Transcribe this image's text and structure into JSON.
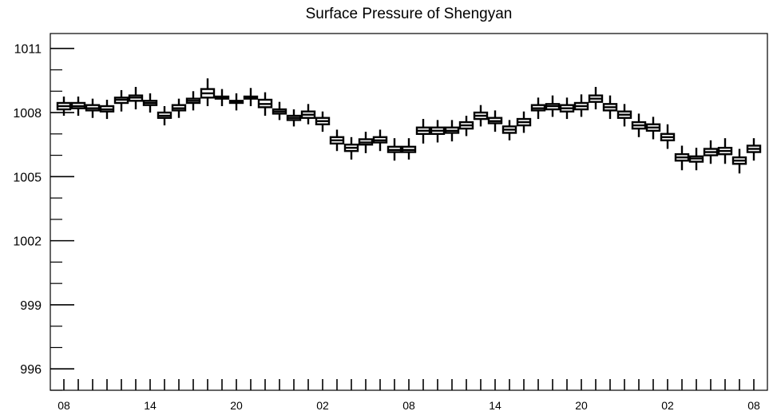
{
  "chart_data": {
    "type": "boxplot",
    "title": "Surface Pressure of Shengyan",
    "xlabel": "",
    "ylabel": "",
    "ylim": [
      995,
      1011.7
    ],
    "yticks": [
      996,
      999,
      1002,
      1005,
      1008,
      1011
    ],
    "ytick_labels": [
      "996",
      "999",
      "1002",
      "1005",
      "1008",
      "1011"
    ],
    "xtick_labels": [
      "08",
      "14",
      "20",
      "02",
      "08",
      "14",
      "20",
      "02",
      "08"
    ],
    "xtick_positions": [
      0,
      6,
      12,
      18,
      24,
      30,
      36,
      42,
      48
    ],
    "grid": false,
    "boxes": [
      {
        "x": 0,
        "q1": 1008.15,
        "median": 1008.3,
        "q3": 1008.45,
        "whislo": 1007.85,
        "whishi": 1008.75
      },
      {
        "x": 1,
        "q1": 1008.2,
        "median": 1008.3,
        "q3": 1008.45,
        "whislo": 1007.85,
        "whishi": 1008.75
      },
      {
        "x": 2,
        "q1": 1008.1,
        "median": 1008.2,
        "q3": 1008.35,
        "whislo": 1007.75,
        "whishi": 1008.65
      },
      {
        "x": 3,
        "q1": 1008.05,
        "median": 1008.15,
        "q3": 1008.3,
        "whislo": 1007.7,
        "whishi": 1008.6
      },
      {
        "x": 4,
        "q1": 1008.45,
        "median": 1008.6,
        "q3": 1008.7,
        "whislo": 1008.05,
        "whishi": 1009.05
      },
      {
        "x": 5,
        "q1": 1008.55,
        "median": 1008.7,
        "q3": 1008.8,
        "whislo": 1008.15,
        "whishi": 1009.2
      },
      {
        "x": 6,
        "q1": 1008.35,
        "median": 1008.45,
        "q3": 1008.55,
        "whislo": 1008.0,
        "whishi": 1008.9
      },
      {
        "x": 7,
        "q1": 1007.75,
        "median": 1007.85,
        "q3": 1008.0,
        "whislo": 1007.4,
        "whishi": 1008.3
      },
      {
        "x": 8,
        "q1": 1008.1,
        "median": 1008.2,
        "q3": 1008.35,
        "whislo": 1007.75,
        "whishi": 1008.65
      },
      {
        "x": 9,
        "q1": 1008.45,
        "median": 1008.55,
        "q3": 1008.65,
        "whislo": 1008.1,
        "whishi": 1009.0
      },
      {
        "x": 10,
        "q1": 1008.7,
        "median": 1008.9,
        "q3": 1009.1,
        "whislo": 1008.3,
        "whishi": 1009.6
      },
      {
        "x": 11,
        "q1": 1008.65,
        "median": 1008.7,
        "q3": 1008.75,
        "whislo": 1008.3,
        "whishi": 1009.1
      },
      {
        "x": 12,
        "q1": 1008.45,
        "median": 1008.5,
        "q3": 1008.55,
        "whislo": 1008.1,
        "whishi": 1008.9
      },
      {
        "x": 13,
        "q1": 1008.65,
        "median": 1008.7,
        "q3": 1008.75,
        "whislo": 1008.3,
        "whishi": 1009.15
      },
      {
        "x": 14,
        "q1": 1008.25,
        "median": 1008.4,
        "q3": 1008.6,
        "whislo": 1007.85,
        "whishi": 1008.95
      },
      {
        "x": 15,
        "q1": 1007.95,
        "median": 1008.05,
        "q3": 1008.15,
        "whislo": 1007.65,
        "whishi": 1008.5
      },
      {
        "x": 16,
        "q1": 1007.65,
        "median": 1007.75,
        "q3": 1007.85,
        "whislo": 1007.35,
        "whishi": 1008.15
      },
      {
        "x": 17,
        "q1": 1007.75,
        "median": 1007.9,
        "q3": 1008.05,
        "whislo": 1007.45,
        "whishi": 1008.4
      },
      {
        "x": 18,
        "q1": 1007.45,
        "median": 1007.6,
        "q3": 1007.75,
        "whislo": 1007.1,
        "whishi": 1008.05
      },
      {
        "x": 19,
        "q1": 1006.55,
        "median": 1006.7,
        "q3": 1006.85,
        "whislo": 1006.2,
        "whishi": 1007.2
      },
      {
        "x": 20,
        "q1": 1006.2,
        "median": 1006.35,
        "q3": 1006.5,
        "whislo": 1005.8,
        "whishi": 1006.85
      },
      {
        "x": 21,
        "q1": 1006.5,
        "median": 1006.6,
        "q3": 1006.75,
        "whislo": 1006.1,
        "whishi": 1007.1
      },
      {
        "x": 22,
        "q1": 1006.6,
        "median": 1006.7,
        "q3": 1006.85,
        "whislo": 1006.2,
        "whishi": 1007.2
      },
      {
        "x": 23,
        "q1": 1006.15,
        "median": 1006.25,
        "q3": 1006.4,
        "whislo": 1005.75,
        "whishi": 1006.8
      },
      {
        "x": 24,
        "q1": 1006.15,
        "median": 1006.25,
        "q3": 1006.4,
        "whislo": 1005.8,
        "whishi": 1006.8
      },
      {
        "x": 25,
        "q1": 1007.0,
        "median": 1007.15,
        "q3": 1007.3,
        "whislo": 1006.55,
        "whishi": 1007.7
      },
      {
        "x": 26,
        "q1": 1007.0,
        "median": 1007.15,
        "q3": 1007.3,
        "whislo": 1006.6,
        "whishi": 1007.65
      },
      {
        "x": 27,
        "q1": 1007.05,
        "median": 1007.15,
        "q3": 1007.3,
        "whislo": 1006.65,
        "whishi": 1007.65
      },
      {
        "x": 28,
        "q1": 1007.25,
        "median": 1007.4,
        "q3": 1007.55,
        "whislo": 1006.9,
        "whishi": 1007.85
      },
      {
        "x": 29,
        "q1": 1007.7,
        "median": 1007.85,
        "q3": 1008.0,
        "whislo": 1007.35,
        "whishi": 1008.35
      },
      {
        "x": 30,
        "q1": 1007.5,
        "median": 1007.6,
        "q3": 1007.75,
        "whislo": 1007.1,
        "whishi": 1008.1
      },
      {
        "x": 31,
        "q1": 1007.05,
        "median": 1007.2,
        "q3": 1007.35,
        "whislo": 1006.7,
        "whishi": 1007.65
      },
      {
        "x": 32,
        "q1": 1007.4,
        "median": 1007.55,
        "q3": 1007.7,
        "whislo": 1007.05,
        "whishi": 1008.05
      },
      {
        "x": 33,
        "q1": 1008.1,
        "median": 1008.2,
        "q3": 1008.35,
        "whislo": 1007.7,
        "whishi": 1008.7
      },
      {
        "x": 34,
        "q1": 1008.15,
        "median": 1008.3,
        "q3": 1008.4,
        "whislo": 1007.8,
        "whishi": 1008.8
      },
      {
        "x": 35,
        "q1": 1008.05,
        "median": 1008.2,
        "q3": 1008.35,
        "whislo": 1007.7,
        "whishi": 1008.7
      },
      {
        "x": 36,
        "q1": 1008.15,
        "median": 1008.3,
        "q3": 1008.45,
        "whislo": 1007.8,
        "whishi": 1008.85
      },
      {
        "x": 37,
        "q1": 1008.5,
        "median": 1008.65,
        "q3": 1008.8,
        "whislo": 1008.15,
        "whishi": 1009.2
      },
      {
        "x": 38,
        "q1": 1008.1,
        "median": 1008.25,
        "q3": 1008.4,
        "whislo": 1007.7,
        "whishi": 1008.8
      },
      {
        "x": 39,
        "q1": 1007.75,
        "median": 1007.9,
        "q3": 1008.05,
        "whislo": 1007.35,
        "whishi": 1008.4
      },
      {
        "x": 40,
        "q1": 1007.25,
        "median": 1007.4,
        "q3": 1007.55,
        "whislo": 1006.85,
        "whishi": 1007.95
      },
      {
        "x": 41,
        "q1": 1007.15,
        "median": 1007.3,
        "q3": 1007.45,
        "whislo": 1006.75,
        "whishi": 1007.8
      },
      {
        "x": 42,
        "q1": 1006.7,
        "median": 1006.85,
        "q3": 1007.0,
        "whislo": 1006.3,
        "whishi": 1007.45
      },
      {
        "x": 43,
        "q1": 1005.75,
        "median": 1005.9,
        "q3": 1006.05,
        "whislo": 1005.3,
        "whishi": 1006.45
      },
      {
        "x": 44,
        "q1": 1005.7,
        "median": 1005.85,
        "q3": 1005.95,
        "whislo": 1005.3,
        "whishi": 1006.35
      },
      {
        "x": 45,
        "q1": 1006.0,
        "median": 1006.15,
        "q3": 1006.3,
        "whislo": 1005.6,
        "whishi": 1006.7
      },
      {
        "x": 46,
        "q1": 1006.05,
        "median": 1006.2,
        "q3": 1006.35,
        "whislo": 1005.6,
        "whishi": 1006.8
      },
      {
        "x": 47,
        "q1": 1005.6,
        "median": 1005.75,
        "q3": 1005.9,
        "whislo": 1005.15,
        "whishi": 1006.3
      },
      {
        "x": 48,
        "q1": 1006.15,
        "median": 1006.3,
        "q3": 1006.45,
        "whislo": 1005.75,
        "whishi": 1006.8
      }
    ],
    "colors": {
      "box_fill": "#ffffff",
      "stroke": "#000000",
      "background": "#ffffff"
    }
  }
}
